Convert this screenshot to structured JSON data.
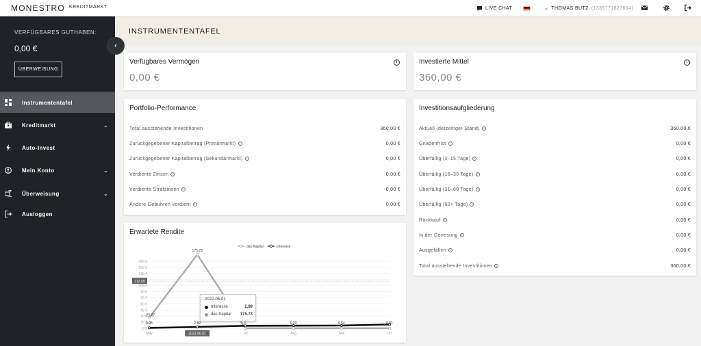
{
  "topbar": {
    "logo": "MONESTRO",
    "nav": "KREDITMARKT",
    "live_chat": "LIVE CHAT",
    "user_name": "THOMAS BUTZ",
    "user_id": "(1339771827664)"
  },
  "sidebar": {
    "balance_label": "VERFÜGBARES GUTHABEN:",
    "balance_value": "0,00 €",
    "transfer_button": "ÜBERWEISUNG",
    "items": [
      {
        "label": "Instrumententafel",
        "icon": "dashboard-icon",
        "active": true
      },
      {
        "label": "Kreditmarkt",
        "icon": "briefcase-icon",
        "has_chevron": true
      },
      {
        "label": "Auto-Invest",
        "icon": "lightning-icon"
      },
      {
        "label": "Mein Konto",
        "icon": "user-circle-icon",
        "has_chevron": true
      },
      {
        "label": "Überweisung",
        "icon": "transfer-icon",
        "has_chevron": true
      },
      {
        "label": "Ausloggen",
        "icon": "logout-icon"
      }
    ]
  },
  "header": {
    "title": "INSTRUMENTENTAFEL"
  },
  "cards": {
    "available": {
      "title": "Verfügbares Vermögen",
      "value": "0,00 €"
    },
    "invested": {
      "title": "Investierte Mittel",
      "value": "360,00 €"
    }
  },
  "performance": {
    "title": "Portfolio-Performance",
    "rows": [
      {
        "label": "Total ausstehende Investitionen",
        "value": "360,00 €"
      },
      {
        "label": "Zurückgegebener Kapitalbetrag (Primärmarkt)",
        "value": "0,00 €"
      },
      {
        "label": "Zurückgegebener Kapitalbetrag (Sekundärmarkt)",
        "value": "0,00 €"
      },
      {
        "label": "Verdiente Zinsen",
        "value": "0,00 €"
      },
      {
        "label": "Verdiente Strafzinsen",
        "value": "0,00 €"
      },
      {
        "label": "Andere Gebühren verdient",
        "value": "0,00 €"
      }
    ]
  },
  "breakdown": {
    "title": "Investitionsaufgliederung",
    "rows": [
      {
        "label": "Aktuell (derzeitiger Stand)",
        "value": "360,00 €"
      },
      {
        "label": "Gnadenfrist",
        "value": "0,00 €"
      },
      {
        "label": "Überfällig (3–15 Tage)",
        "value": "0,00 €"
      },
      {
        "label": "Überfällig (16–30 Tage)",
        "value": "0,00 €"
      },
      {
        "label": "Überfällig (31–60 Tage)",
        "value": "0,00 €"
      },
      {
        "label": "Überfällig (60+ Tage)",
        "value": "0,00 €"
      },
      {
        "label": "Rückkauf",
        "value": "0,00 €"
      },
      {
        "label": "In der Genesung",
        "value": "0,00 €"
      },
      {
        "label": "Ausgefallen",
        "value": "0,00 €"
      },
      {
        "label": "Total ausstehende Investitionen",
        "value": "360,00 €"
      }
    ]
  },
  "chart_data": {
    "type": "line",
    "title": "Erwartete Rendite",
    "legend_position": "top-center",
    "categories": [
      "May",
      "Jun",
      "Jul",
      "Aug",
      "Sep",
      "Oct"
    ],
    "y_ticks": [
      "0 €",
      "15 €",
      "30 €",
      "45 €",
      "60 €",
      "75 €",
      "90 €",
      "105 €",
      "120 €",
      "135 €",
      "150 €",
      "160 €"
    ],
    "ylim": [
      0,
      160
    ],
    "series": [
      {
        "name": "das Kapital",
        "color": "#aaaaaa",
        "values": [
          25.07,
          175.73,
          0,
          0,
          0,
          0
        ]
      },
      {
        "name": "Interesse",
        "color": "#111111",
        "values": [
          0.95,
          2.89,
          6,
          6.23,
          6.54,
          8.81
        ]
      }
    ],
    "point_labels": [
      "0.95",
      "2.89",
      "6",
      "6.23",
      "6.54",
      "8.81"
    ],
    "peak_label": "175.73",
    "start_label": "25.07",
    "crosshair_label": "112.49",
    "x_highlight": "2022-06-01",
    "tooltip": {
      "date": "2022-06-01",
      "rows": [
        {
          "name": "Interesse",
          "value": "2.89"
        },
        {
          "name": "das Kapital",
          "value": "175.73"
        }
      ]
    }
  }
}
